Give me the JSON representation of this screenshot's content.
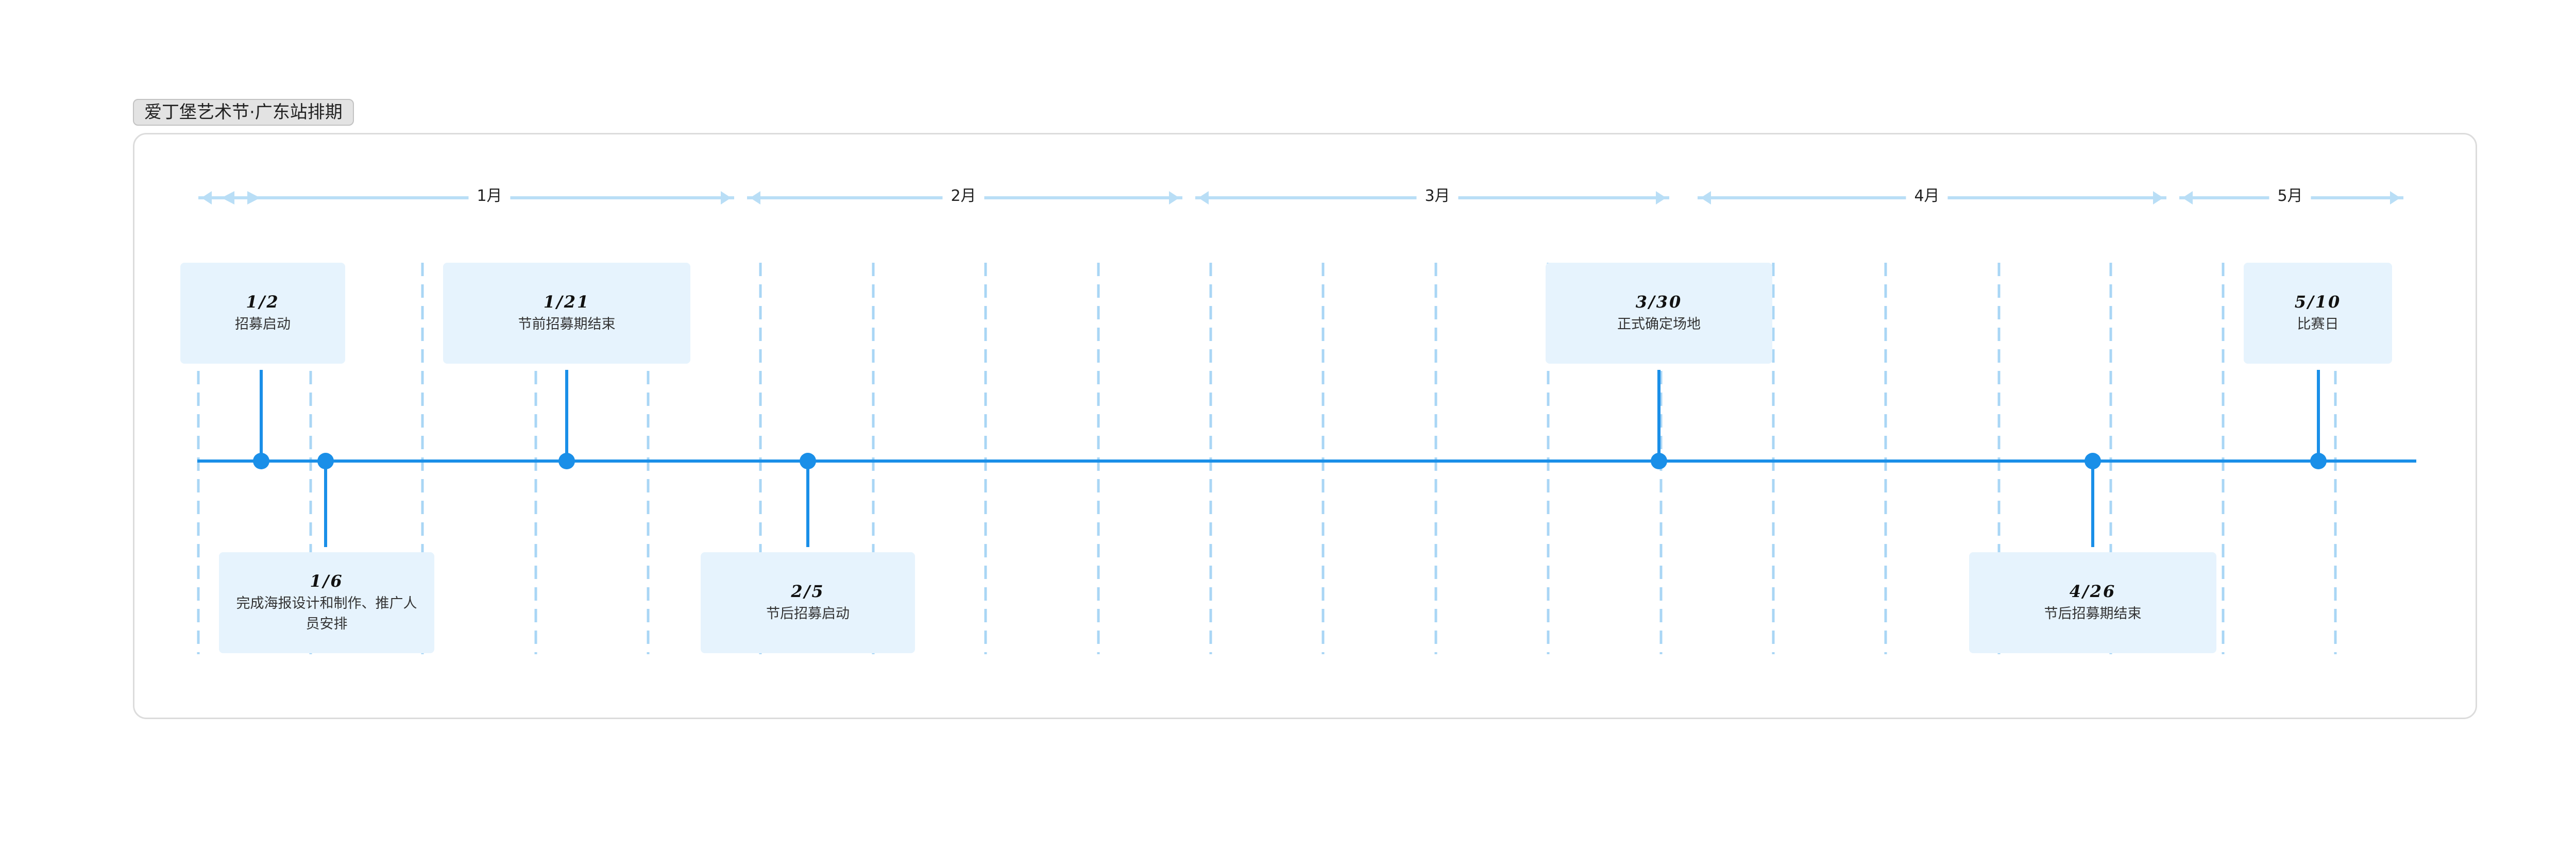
{
  "title": "爱丁堡艺术节·广东站排期",
  "colors": {
    "axis": "#1a8fe8",
    "month_band": "#b9def6",
    "gridline": "#a9d6f5",
    "card_bg": "#e6f3fd",
    "frame_border": "#dcdcdc"
  },
  "months": [
    {
      "label": "1月"
    },
    {
      "label": "2月"
    },
    {
      "label": "3月"
    },
    {
      "label": "4月"
    },
    {
      "label": "5月"
    }
  ],
  "milestones": [
    {
      "date": "1/2",
      "text": "招募启动",
      "position": "above"
    },
    {
      "date": "1/6",
      "text": "完成海报设计和制作、推广人员安排",
      "position": "below"
    },
    {
      "date": "1/21",
      "text": "节前招募期结束",
      "position": "above"
    },
    {
      "date": "2/5",
      "text": "节后招募启动",
      "position": "below"
    },
    {
      "date": "3/30",
      "text": "正式确定场地",
      "position": "above"
    },
    {
      "date": "4/26",
      "text": "节后招募期结束",
      "position": "below"
    },
    {
      "date": "5/10",
      "text": "比赛日",
      "position": "above"
    }
  ]
}
